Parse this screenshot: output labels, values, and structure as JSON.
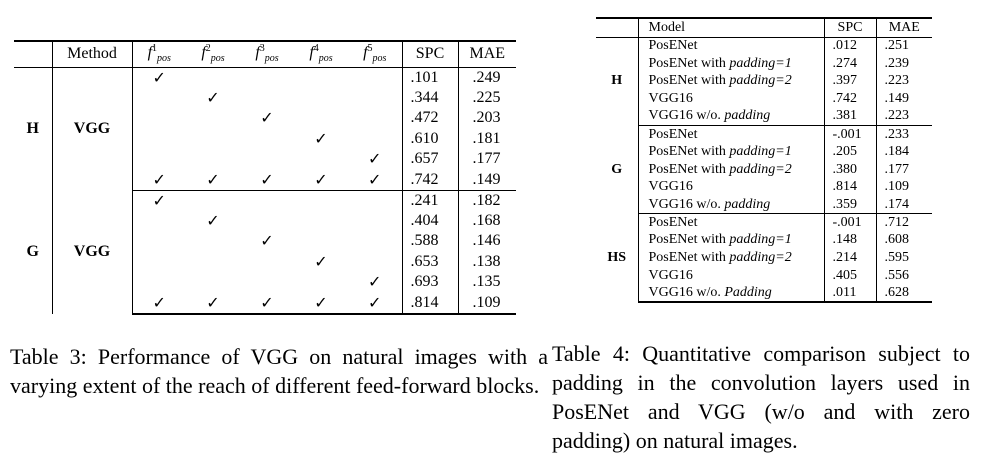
{
  "table3": {
    "header": {
      "method": "Method",
      "f": [
        {
          "base": "f",
          "sup": "1",
          "sub": "pos"
        },
        {
          "base": "f",
          "sup": "2",
          "sub": "pos"
        },
        {
          "base": "f",
          "sup": "3",
          "sub": "pos"
        },
        {
          "base": "f",
          "sup": "4",
          "sub": "pos"
        },
        {
          "base": "f",
          "sup": "5",
          "sub": "pos"
        }
      ],
      "spc": "SPC",
      "mae": "MAE"
    },
    "check": "✓",
    "groups": [
      {
        "label": "H",
        "method": "VGG",
        "rows": [
          {
            "checks": [
              1,
              0,
              0,
              0,
              0
            ],
            "spc": ".101",
            "mae": ".249"
          },
          {
            "checks": [
              0,
              1,
              0,
              0,
              0
            ],
            "spc": ".344",
            "mae": ".225"
          },
          {
            "checks": [
              0,
              0,
              1,
              0,
              0
            ],
            "spc": ".472",
            "mae": ".203"
          },
          {
            "checks": [
              0,
              0,
              0,
              1,
              0
            ],
            "spc": ".610",
            "mae": ".181"
          },
          {
            "checks": [
              0,
              0,
              0,
              0,
              1
            ],
            "spc": ".657",
            "mae": ".177"
          },
          {
            "checks": [
              1,
              1,
              1,
              1,
              1
            ],
            "spc": ".742",
            "mae": ".149"
          }
        ]
      },
      {
        "label": "G",
        "method": "VGG",
        "rows": [
          {
            "checks": [
              1,
              0,
              0,
              0,
              0
            ],
            "spc": ".241",
            "mae": ".182"
          },
          {
            "checks": [
              0,
              1,
              0,
              0,
              0
            ],
            "spc": ".404",
            "mae": ".168"
          },
          {
            "checks": [
              0,
              0,
              1,
              0,
              0
            ],
            "spc": ".588",
            "mae": ".146"
          },
          {
            "checks": [
              0,
              0,
              0,
              1,
              0
            ],
            "spc": ".653",
            "mae": ".138"
          },
          {
            "checks": [
              0,
              0,
              0,
              0,
              1
            ],
            "spc": ".693",
            "mae": ".135"
          },
          {
            "checks": [
              1,
              1,
              1,
              1,
              1
            ],
            "spc": ".814",
            "mae": ".109"
          }
        ]
      }
    ],
    "caption": "Table 3: Performance of VGG on natural images with a varying extent of the reach of different feed-forward blocks."
  },
  "table4": {
    "header": {
      "model": "Model",
      "spc": "SPC",
      "mae": "MAE"
    },
    "groups": [
      {
        "label": "H",
        "rows": [
          {
            "model": "PosENet",
            "pad": "",
            "spc": ".012",
            "mae": ".251"
          },
          {
            "model": "PosENet with ",
            "pad": "padding=1",
            "spc": ".274",
            "mae": ".239"
          },
          {
            "model": "PosENet with ",
            "pad": "padding=2",
            "spc": ".397",
            "mae": ".223"
          },
          {
            "model": "VGG16",
            "pad": "",
            "spc": ".742",
            "mae": ".149"
          },
          {
            "model": "VGG16 w/o. ",
            "pad": "padding",
            "spc": ".381",
            "mae": ".223"
          }
        ]
      },
      {
        "label": "G",
        "rows": [
          {
            "model": "PosENet",
            "pad": "",
            "spc": "-.001",
            "mae": ".233"
          },
          {
            "model": "PosENet with ",
            "pad": "padding=1",
            "spc": ".205",
            "mae": ".184"
          },
          {
            "model": "PosENet with ",
            "pad": "padding=2",
            "spc": ".380",
            "mae": ".177"
          },
          {
            "model": "VGG16",
            "pad": "",
            "spc": ".814",
            "mae": ".109"
          },
          {
            "model": "VGG16 w/o. ",
            "pad": "padding",
            "spc": ".359",
            "mae": ".174"
          }
        ]
      },
      {
        "label": "HS",
        "rows": [
          {
            "model": "PosENet",
            "pad": "",
            "spc": "-.001",
            "mae": ".712"
          },
          {
            "model": "PosENet with ",
            "pad": "padding=1",
            "spc": ".148",
            "mae": ".608"
          },
          {
            "model": "PosENet with ",
            "pad": "padding=2",
            "spc": ".214",
            "mae": ".595"
          },
          {
            "model": "VGG16",
            "pad": "",
            "spc": ".405",
            "mae": ".556"
          },
          {
            "model": "VGG16 w/o. ",
            "pad": "Padding",
            "spc": ".011",
            "mae": ".628"
          }
        ]
      }
    ],
    "caption": "Table 4: Quantitative comparison subject to padding in the convolution layers used in PosENet and VGG (w/o and with zero padding) on natural images."
  }
}
